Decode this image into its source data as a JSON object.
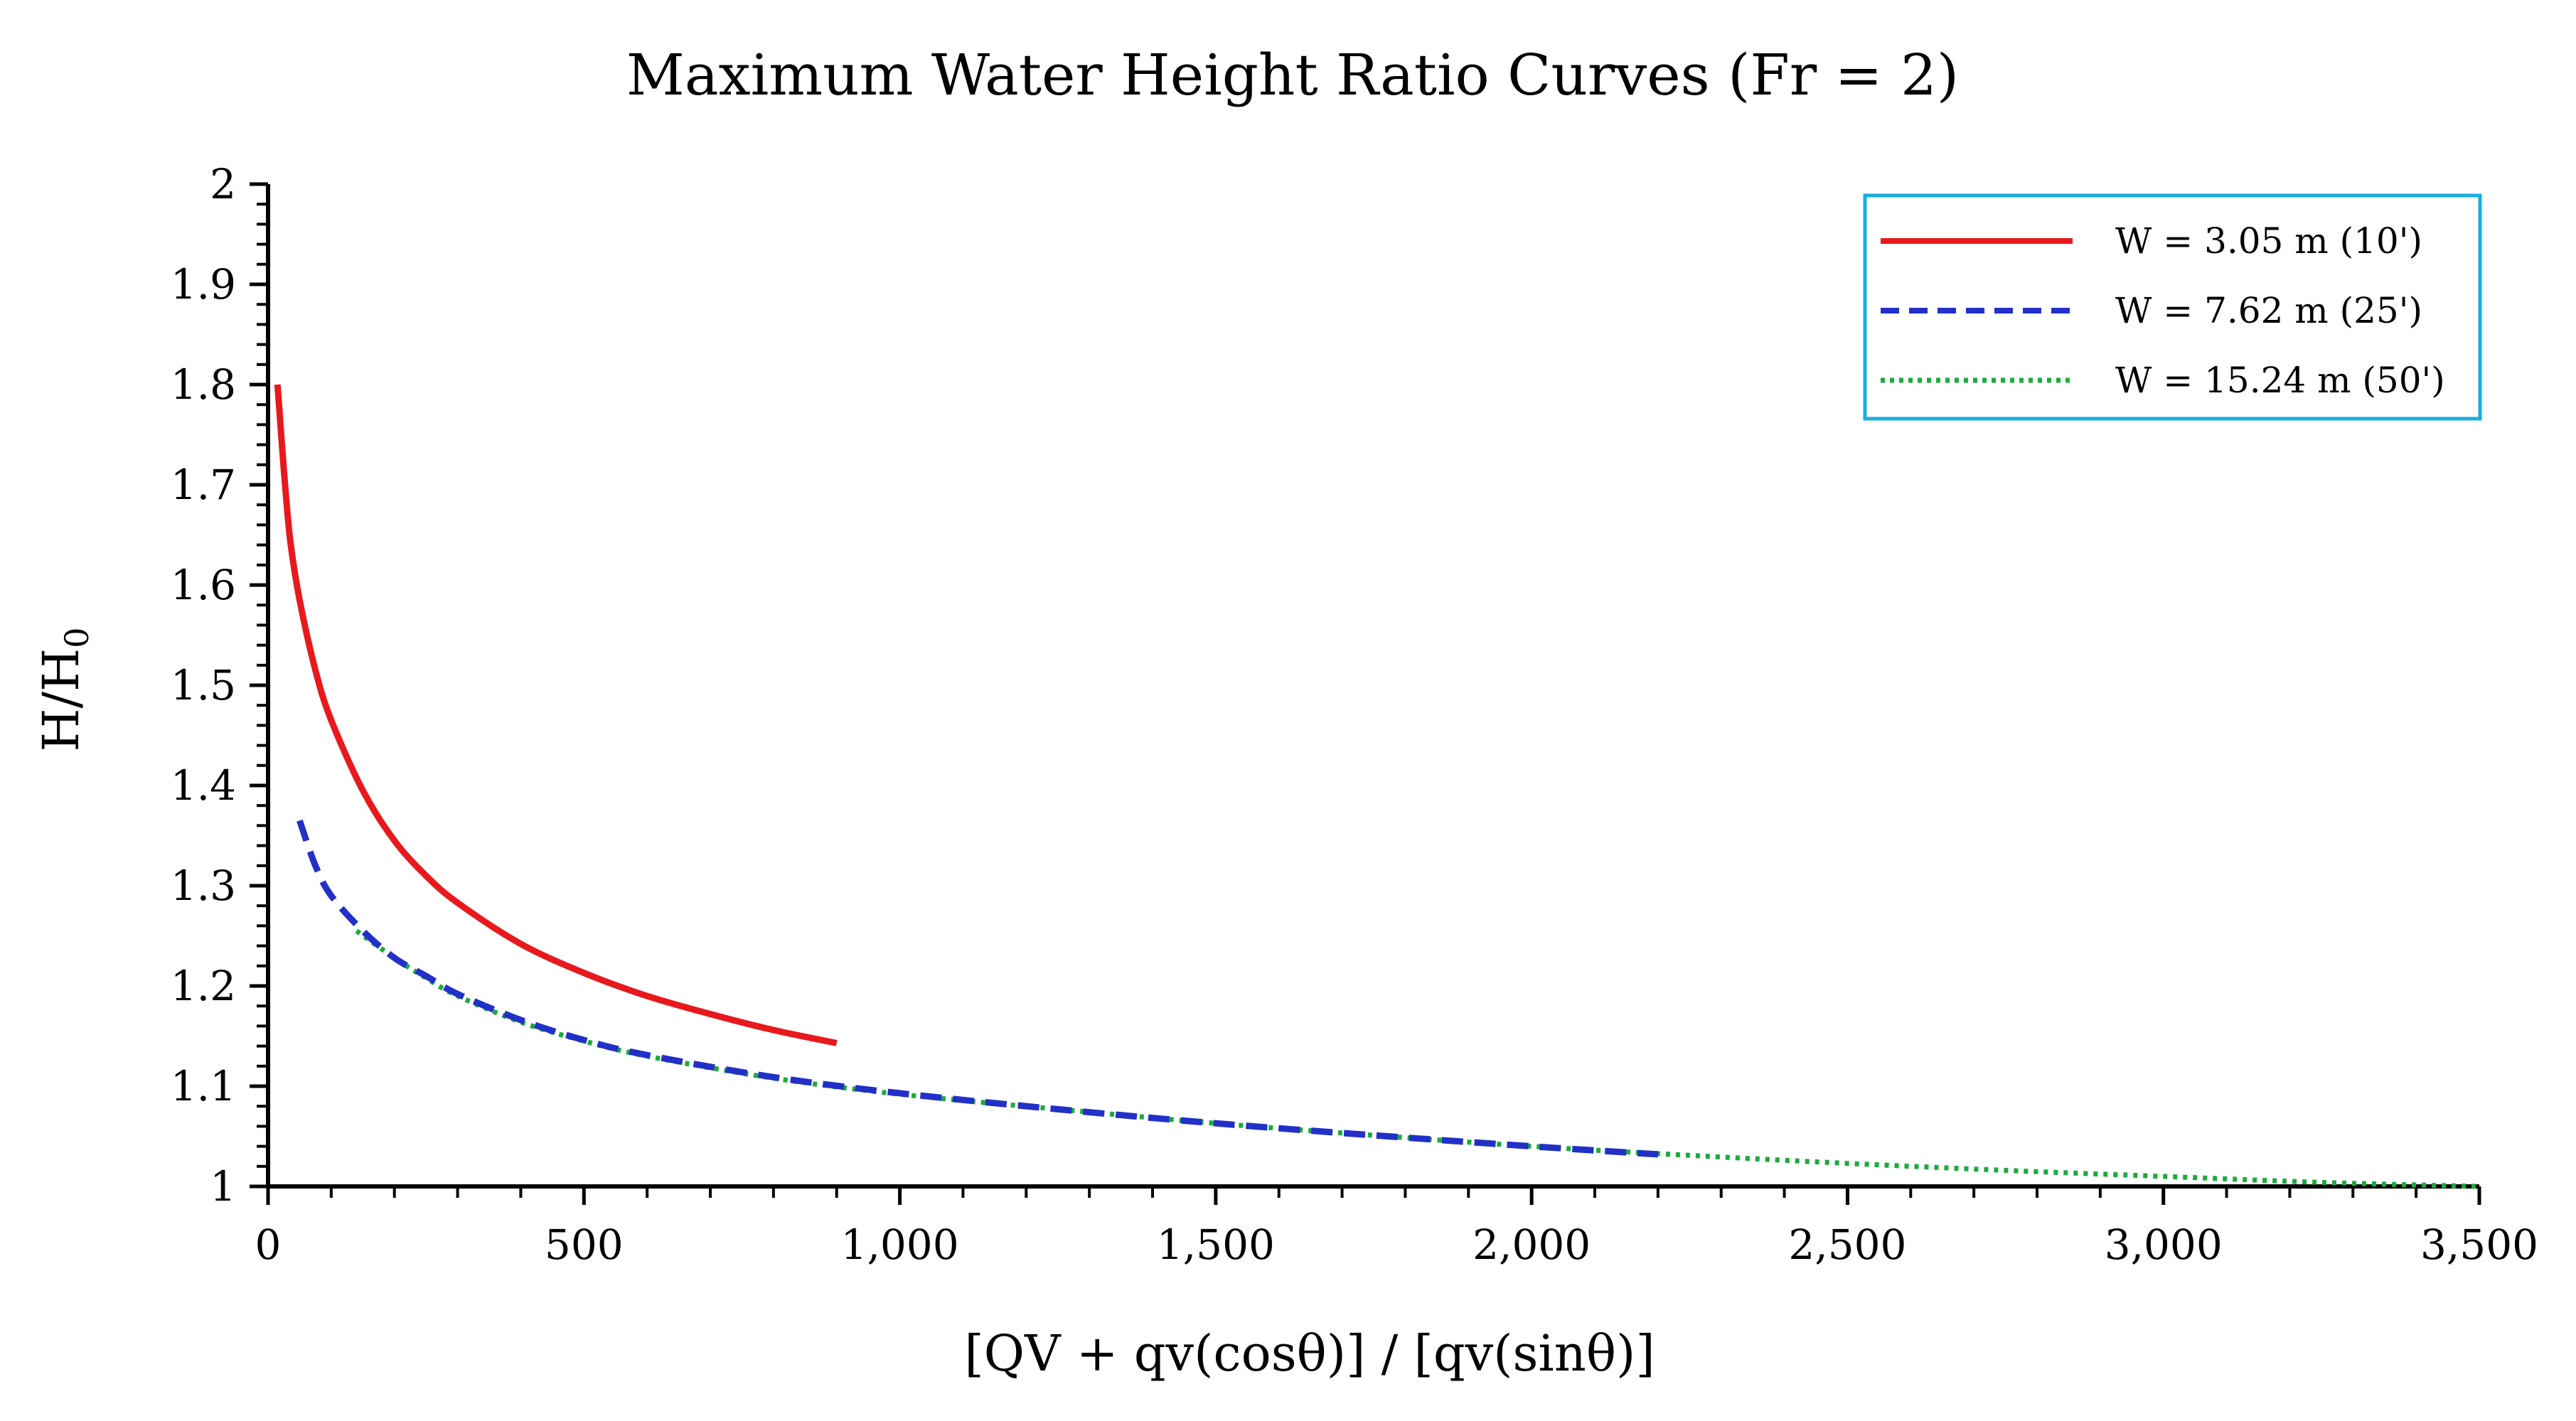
{
  "chart_data": {
    "type": "line",
    "title": "Maximum Water Height Ratio Curves (Fr = 2)",
    "xlabel": "[QV + qv(cosθ)] / [qv(sinθ)]",
    "ylabel": "H/H",
    "ylabel_subscript": "0",
    "xlim": [
      0,
      3500
    ],
    "ylim": [
      1,
      2
    ],
    "x_ticks": [
      0,
      500,
      1000,
      1500,
      2000,
      2500,
      3000,
      3500
    ],
    "x_tick_labels": [
      "0",
      "500",
      "1,000",
      "1,500",
      "2,000",
      "2,500",
      "3,000",
      "3,500"
    ],
    "y_ticks": [
      1,
      1.1,
      1.2,
      1.3,
      1.4,
      1.5,
      1.6,
      1.7,
      1.8,
      1.9,
      2
    ],
    "y_tick_labels": [
      "1",
      "1.1",
      "1.2",
      "1.3",
      "1.4",
      "1.5",
      "1.6",
      "1.7",
      "1.8",
      "1.9",
      "2"
    ],
    "grid": false,
    "legend_position": "top-right",
    "series": [
      {
        "name": "W = 3.05 m (10')",
        "color": "#e8191d",
        "style": "solid",
        "x": [
          15,
          25,
          35,
          50,
          75,
          100,
          150,
          200,
          250,
          300,
          400,
          500,
          600,
          700,
          800,
          900
        ],
        "y": [
          1.8,
          1.715,
          1.645,
          1.585,
          1.515,
          1.465,
          1.395,
          1.345,
          1.31,
          1.283,
          1.242,
          1.213,
          1.19,
          1.172,
          1.156,
          1.143
        ]
      },
      {
        "name": "W = 7.62 m (25')",
        "color": "#2230c8",
        "style": "dashed",
        "x": [
          50,
          75,
          100,
          150,
          200,
          250,
          300,
          400,
          500,
          600,
          800,
          1000,
          1250,
          1500,
          1750,
          2000,
          2200
        ],
        "y": [
          1.365,
          1.32,
          1.29,
          1.255,
          1.228,
          1.21,
          1.192,
          1.166,
          1.146,
          1.131,
          1.109,
          1.093,
          1.077,
          1.063,
          1.051,
          1.04,
          1.032
        ]
      },
      {
        "name": "W = 15.24 m (50')",
        "color": "#1aab3c",
        "style": "dotted",
        "x": [
          140,
          200,
          250,
          300,
          400,
          500,
          600,
          800,
          1000,
          1250,
          1500,
          1750,
          2000,
          2250,
          2500,
          2750,
          3000,
          3250,
          3500
        ],
        "y": [
          1.255,
          1.228,
          1.208,
          1.19,
          1.164,
          1.145,
          1.13,
          1.108,
          1.092,
          1.077,
          1.063,
          1.051,
          1.04,
          1.031,
          1.023,
          1.016,
          1.01,
          1.004,
          1.0
        ]
      }
    ]
  }
}
